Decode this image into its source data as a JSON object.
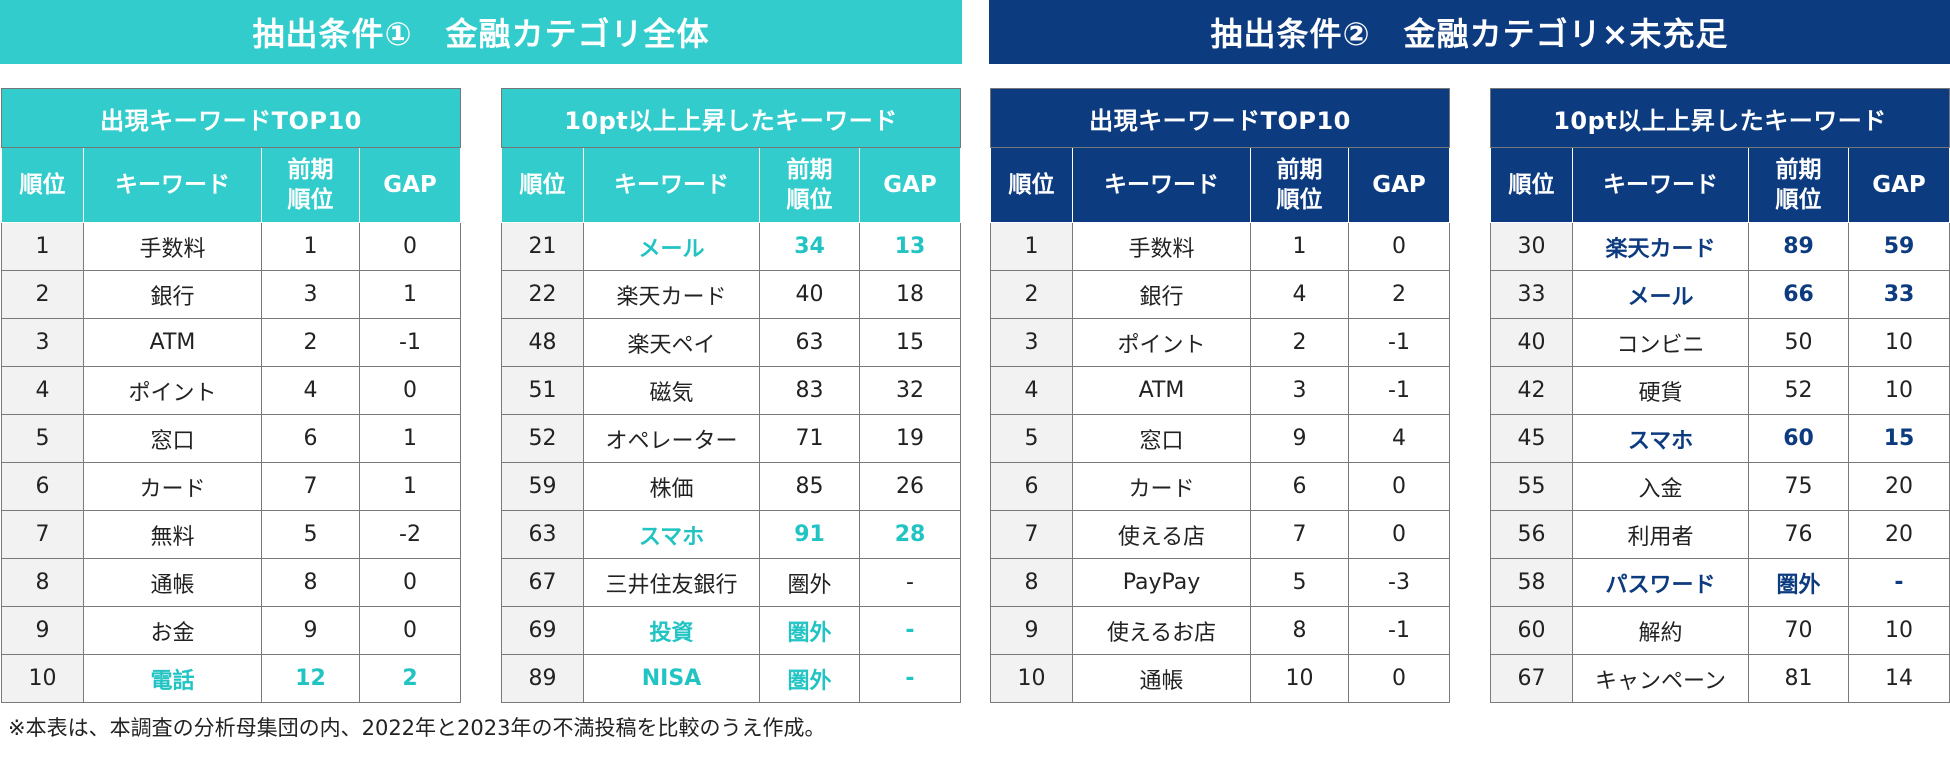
{
  "banners": {
    "left": "抽出条件①　金融カテゴリ全体",
    "right": "抽出条件②　金融カテゴリ×未充足"
  },
  "headers": {
    "rank": "順位",
    "keyword": "キーワード",
    "prev_rank_line1": "前期",
    "prev_rank_line2": "順位",
    "gap": "GAP"
  },
  "tables": [
    {
      "title": "出現キーワードTOP10",
      "rows": [
        {
          "rank": "1",
          "keyword": "手数料",
          "prev": "1",
          "gap": "0",
          "highlight": false
        },
        {
          "rank": "2",
          "keyword": "銀行",
          "prev": "3",
          "gap": "1",
          "highlight": false
        },
        {
          "rank": "3",
          "keyword": "ATM",
          "prev": "2",
          "gap": "-1",
          "highlight": false
        },
        {
          "rank": "4",
          "keyword": "ポイント",
          "prev": "4",
          "gap": "0",
          "highlight": false
        },
        {
          "rank": "5",
          "keyword": "窓口",
          "prev": "6",
          "gap": "1",
          "highlight": false
        },
        {
          "rank": "6",
          "keyword": "カード",
          "prev": "7",
          "gap": "1",
          "highlight": false
        },
        {
          "rank": "7",
          "keyword": "無料",
          "prev": "5",
          "gap": "-2",
          "highlight": false
        },
        {
          "rank": "8",
          "keyword": "通帳",
          "prev": "8",
          "gap": "0",
          "highlight": false
        },
        {
          "rank": "9",
          "keyword": "お金",
          "prev": "9",
          "gap": "0",
          "highlight": false
        },
        {
          "rank": "10",
          "keyword": "電話",
          "prev": "12",
          "gap": "2",
          "highlight": true
        }
      ]
    },
    {
      "title": "10pt以上上昇したキーワード",
      "rows": [
        {
          "rank": "21",
          "keyword": "メール",
          "prev": "34",
          "gap": "13",
          "highlight": true
        },
        {
          "rank": "22",
          "keyword": "楽天カード",
          "prev": "40",
          "gap": "18",
          "highlight": false
        },
        {
          "rank": "48",
          "keyword": "楽天ペイ",
          "prev": "63",
          "gap": "15",
          "highlight": false
        },
        {
          "rank": "51",
          "keyword": "磁気",
          "prev": "83",
          "gap": "32",
          "highlight": false
        },
        {
          "rank": "52",
          "keyword": "オペレーター",
          "prev": "71",
          "gap": "19",
          "highlight": false
        },
        {
          "rank": "59",
          "keyword": "株価",
          "prev": "85",
          "gap": "26",
          "highlight": false
        },
        {
          "rank": "63",
          "keyword": "スマホ",
          "prev": "91",
          "gap": "28",
          "highlight": true
        },
        {
          "rank": "67",
          "keyword": "三井住友銀行",
          "prev": "圏外",
          "gap": "-",
          "highlight": false
        },
        {
          "rank": "69",
          "keyword": "投資",
          "prev": "圏外",
          "gap": "-",
          "highlight": true
        },
        {
          "rank": "89",
          "keyword": "NISA",
          "prev": "圏外",
          "gap": "-",
          "highlight": true
        }
      ]
    },
    {
      "title": "出現キーワードTOP10",
      "rows": [
        {
          "rank": "1",
          "keyword": "手数料",
          "prev": "1",
          "gap": "0",
          "highlight": false
        },
        {
          "rank": "2",
          "keyword": "銀行",
          "prev": "4",
          "gap": "2",
          "highlight": false
        },
        {
          "rank": "3",
          "keyword": "ポイント",
          "prev": "2",
          "gap": "-1",
          "highlight": false
        },
        {
          "rank": "4",
          "keyword": "ATM",
          "prev": "3",
          "gap": "-1",
          "highlight": false
        },
        {
          "rank": "5",
          "keyword": "窓口",
          "prev": "9",
          "gap": "4",
          "highlight": false
        },
        {
          "rank": "6",
          "keyword": "カード",
          "prev": "6",
          "gap": "0",
          "highlight": false
        },
        {
          "rank": "7",
          "keyword": "使える店",
          "prev": "7",
          "gap": "0",
          "highlight": false
        },
        {
          "rank": "8",
          "keyword": "PayPay",
          "prev": "5",
          "gap": "-3",
          "highlight": false
        },
        {
          "rank": "9",
          "keyword": "使えるお店",
          "prev": "8",
          "gap": "-1",
          "highlight": false
        },
        {
          "rank": "10",
          "keyword": "通帳",
          "prev": "10",
          "gap": "0",
          "highlight": false
        }
      ]
    },
    {
      "title": "10pt以上上昇したキーワード",
      "rows": [
        {
          "rank": "30",
          "keyword": "楽天カード",
          "prev": "89",
          "gap": "59",
          "highlight": true
        },
        {
          "rank": "33",
          "keyword": "メール",
          "prev": "66",
          "gap": "33",
          "highlight": true
        },
        {
          "rank": "40",
          "keyword": "コンビニ",
          "prev": "50",
          "gap": "10",
          "highlight": false
        },
        {
          "rank": "42",
          "keyword": "硬貨",
          "prev": "52",
          "gap": "10",
          "highlight": false
        },
        {
          "rank": "45",
          "keyword": "スマホ",
          "prev": "60",
          "gap": "15",
          "highlight": true
        },
        {
          "rank": "55",
          "keyword": "入金",
          "prev": "75",
          "gap": "20",
          "highlight": false
        },
        {
          "rank": "56",
          "keyword": "利用者",
          "prev": "76",
          "gap": "20",
          "highlight": false
        },
        {
          "rank": "58",
          "keyword": "パスワード",
          "prev": "圏外",
          "gap": "-",
          "highlight": true
        },
        {
          "rank": "60",
          "keyword": "解約",
          "prev": "70",
          "gap": "10",
          "highlight": false
        },
        {
          "rank": "67",
          "keyword": "キャンペーン",
          "prev": "81",
          "gap": "14",
          "highlight": false
        }
      ]
    }
  ],
  "footnote": "※本表は、本調査の分析母集団の内、2022年と2023年の不満投稿を比較のうえ作成。",
  "colors": {
    "teal": "#33cccc",
    "navy": "#0d3b80"
  }
}
